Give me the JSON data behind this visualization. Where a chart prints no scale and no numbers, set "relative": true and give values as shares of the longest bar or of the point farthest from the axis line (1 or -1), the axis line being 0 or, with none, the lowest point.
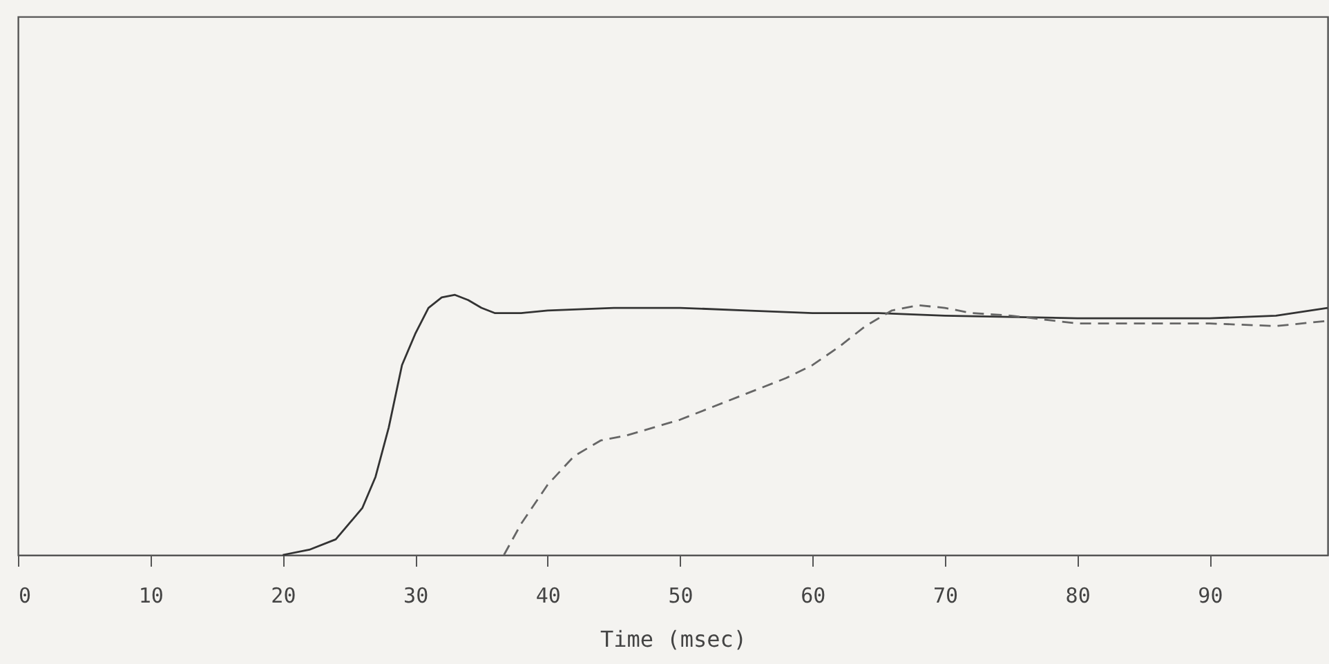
{
  "chart_data": {
    "type": "line",
    "relative": true,
    "xlabel": "Time (msec)",
    "xlim": [
      0,
      98.9
    ],
    "xticks": [
      0,
      10,
      20,
      30,
      40,
      50,
      60,
      70,
      80,
      90
    ],
    "grid": false,
    "marker": "none",
    "series": [
      {
        "color": "#333333",
        "line_style": "solid",
        "x": [
          20,
          22,
          24,
          26,
          27,
          28,
          29,
          30,
          31,
          32,
          33,
          34,
          35,
          36,
          38,
          40,
          45,
          50,
          55,
          60,
          65,
          70,
          80,
          90,
          95,
          98.9
        ],
        "values": [
          0,
          0.02,
          0.06,
          0.18,
          0.3,
          0.49,
          0.73,
          0.85,
          0.95,
          0.99,
          1,
          0.98,
          0.95,
          0.93,
          0.93,
          0.94,
          0.95,
          0.95,
          0.94,
          0.93,
          0.93,
          0.92,
          0.91,
          0.91,
          0.92,
          0.95
        ]
      },
      {
        "color": "#666666",
        "line_style": "dashed",
        "x": [
          36.7,
          38,
          40,
          42,
          44,
          46,
          48,
          50,
          52,
          55,
          58,
          60,
          62,
          64,
          66,
          68,
          70,
          72,
          75,
          80,
          85,
          90,
          95,
          98.9
        ],
        "values": [
          0,
          0.12,
          0.27,
          0.38,
          0.44,
          0.46,
          0.49,
          0.52,
          0.56,
          0.62,
          0.68,
          0.73,
          0.8,
          0.88,
          0.94,
          0.96,
          0.95,
          0.93,
          0.92,
          0.89,
          0.89,
          0.89,
          0.88,
          0.9
        ]
      }
    ]
  }
}
